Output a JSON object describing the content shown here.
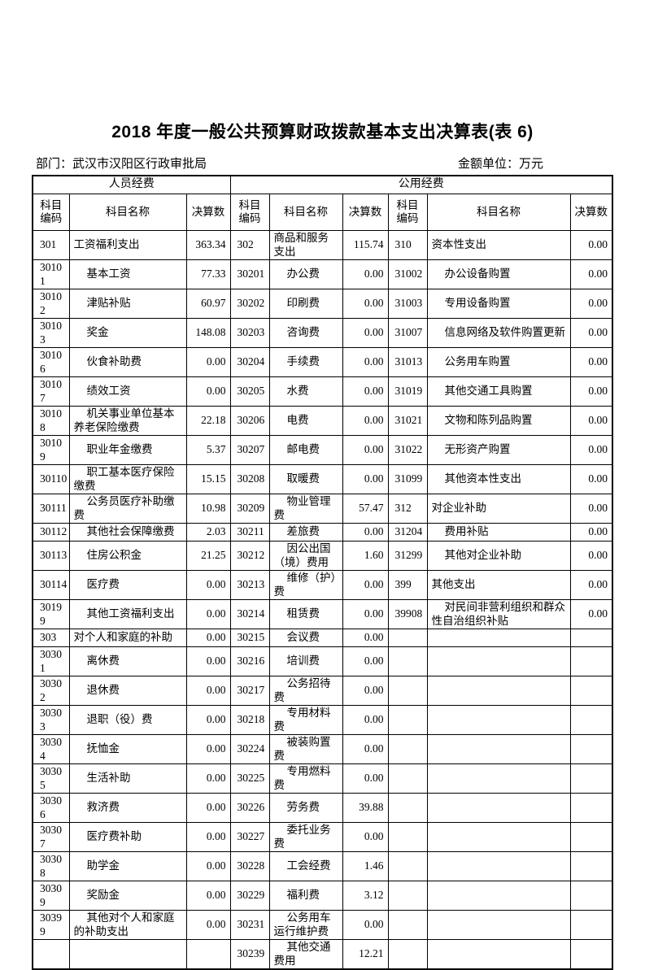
{
  "title": "2018 年度一般公共预算财政拨款基本支出决算表(表 6)",
  "meta": {
    "department_label": "部门：",
    "department_value": "武汉市汉阳区行政审批局",
    "unit_label": "金额单位：",
    "unit_value": "万元"
  },
  "table": {
    "group_headers": [
      "人员经费",
      "公用经费"
    ],
    "column_headers": [
      "科目编码",
      "科目名称",
      "决算数"
    ],
    "rows": [
      {
        "cells": [
          {
            "code": "301",
            "name": "工资福利支出",
            "value": "363.34",
            "parent": true
          },
          {
            "code": "302",
            "name": "商品和服务支出",
            "value": "115.74",
            "parent": true
          },
          {
            "code": "310",
            "name": "资本性支出",
            "value": "0.00",
            "parent": true
          }
        ]
      },
      {
        "cells": [
          {
            "code": "30101",
            "name": "基本工资",
            "value": "77.33"
          },
          {
            "code": "30201",
            "name": "办公费",
            "value": "0.00"
          },
          {
            "code": "31002",
            "name": "办公设备购置",
            "value": "0.00"
          }
        ]
      },
      {
        "cells": [
          {
            "code": "30102",
            "name": "津贴补贴",
            "value": "60.97"
          },
          {
            "code": "30202",
            "name": "印刷费",
            "value": "0.00"
          },
          {
            "code": "31003",
            "name": "专用设备购置",
            "value": "0.00"
          }
        ]
      },
      {
        "cells": [
          {
            "code": "30103",
            "name": "奖金",
            "value": "148.08"
          },
          {
            "code": "30203",
            "name": "咨询费",
            "value": "0.00"
          },
          {
            "code": "31007",
            "name": "信息网络及软件购置更新",
            "value": "0.00"
          }
        ]
      },
      {
        "cells": [
          {
            "code": "30106",
            "name": "伙食补助费",
            "value": "0.00"
          },
          {
            "code": "30204",
            "name": "手续费",
            "value": "0.00"
          },
          {
            "code": "31013",
            "name": "公务用车购置",
            "value": "0.00"
          }
        ]
      },
      {
        "cells": [
          {
            "code": "30107",
            "name": "绩效工资",
            "value": "0.00"
          },
          {
            "code": "30205",
            "name": "水费",
            "value": "0.00"
          },
          {
            "code": "31019",
            "name": "其他交通工具购置",
            "value": "0.00"
          }
        ]
      },
      {
        "cells": [
          {
            "code": "30108",
            "name": "机关事业单位基本养老保险缴费",
            "value": "22.18"
          },
          {
            "code": "30206",
            "name": "电费",
            "value": "0.00"
          },
          {
            "code": "31021",
            "name": "文物和陈列品购置",
            "value": "0.00"
          }
        ]
      },
      {
        "cells": [
          {
            "code": "30109",
            "name": "职业年金缴费",
            "value": "5.37"
          },
          {
            "code": "30207",
            "name": "邮电费",
            "value": "0.00"
          },
          {
            "code": "31022",
            "name": "无形资产购置",
            "value": "0.00"
          }
        ]
      },
      {
        "cells": [
          {
            "code": "30110",
            "name": "职工基本医疗保险缴费",
            "value": "15.15"
          },
          {
            "code": "30208",
            "name": "取暖费",
            "value": "0.00"
          },
          {
            "code": "31099",
            "name": "其他资本性支出",
            "value": "0.00"
          }
        ]
      },
      {
        "cells": [
          {
            "code": "30111",
            "name": "公务员医疗补助缴费",
            "value": "10.98"
          },
          {
            "code": "30209",
            "name": "物业管理费",
            "value": "57.47"
          },
          {
            "code": "312",
            "name": "对企业补助",
            "value": "0.00",
            "parent": true
          }
        ]
      },
      {
        "cells": [
          {
            "code": "30112",
            "name": "其他社会保障缴费",
            "value": "2.03"
          },
          {
            "code": "30211",
            "name": "差旅费",
            "value": "0.00"
          },
          {
            "code": "31204",
            "name": "费用补贴",
            "value": "0.00"
          }
        ]
      },
      {
        "cells": [
          {
            "code": "30113",
            "name": "住房公积金",
            "value": "21.25"
          },
          {
            "code": "30212",
            "name": "因公出国（境）费用",
            "value": "1.60"
          },
          {
            "code": "31299",
            "name": "其他对企业补助",
            "value": "0.00"
          }
        ]
      },
      {
        "cells": [
          {
            "code": "30114",
            "name": "医疗费",
            "value": "0.00"
          },
          {
            "code": "30213",
            "name": "维修（护）费",
            "value": "0.00"
          },
          {
            "code": "399",
            "name": "其他支出",
            "value": "0.00",
            "parent": true
          }
        ]
      },
      {
        "cells": [
          {
            "code": "30199",
            "name": "其他工资福利支出",
            "value": "0.00"
          },
          {
            "code": "30214",
            "name": "租赁费",
            "value": "0.00"
          },
          {
            "code": "39908",
            "name": "对民间非营利组织和群众性自治组织补贴",
            "value": "0.00"
          }
        ]
      },
      {
        "cells": [
          {
            "code": "303",
            "name": "对个人和家庭的补助",
            "value": "0.00",
            "parent": true
          },
          {
            "code": "30215",
            "name": "会议费",
            "value": "0.00"
          },
          {
            "code": "",
            "name": "",
            "value": ""
          }
        ]
      },
      {
        "cells": [
          {
            "code": "30301",
            "name": "离休费",
            "value": "0.00"
          },
          {
            "code": "30216",
            "name": "培训费",
            "value": "0.00"
          },
          {
            "code": "",
            "name": "",
            "value": ""
          }
        ]
      },
      {
        "cells": [
          {
            "code": "30302",
            "name": "退休费",
            "value": "0.00"
          },
          {
            "code": "30217",
            "name": "公务招待费",
            "value": "0.00"
          },
          {
            "code": "",
            "name": "",
            "value": ""
          }
        ]
      },
      {
        "cells": [
          {
            "code": "30303",
            "name": "退职（役）费",
            "value": "0.00"
          },
          {
            "code": "30218",
            "name": "专用材料费",
            "value": "0.00"
          },
          {
            "code": "",
            "name": "",
            "value": ""
          }
        ]
      },
      {
        "cells": [
          {
            "code": "30304",
            "name": "抚恤金",
            "value": "0.00"
          },
          {
            "code": "30224",
            "name": "被装购置费",
            "value": "0.00"
          },
          {
            "code": "",
            "name": "",
            "value": ""
          }
        ]
      },
      {
        "cells": [
          {
            "code": "30305",
            "name": "生活补助",
            "value": "0.00"
          },
          {
            "code": "30225",
            "name": "专用燃料费",
            "value": "0.00"
          },
          {
            "code": "",
            "name": "",
            "value": ""
          }
        ]
      },
      {
        "cells": [
          {
            "code": "30306",
            "name": "救济费",
            "value": "0.00"
          },
          {
            "code": "30226",
            "name": "劳务费",
            "value": "39.88"
          },
          {
            "code": "",
            "name": "",
            "value": ""
          }
        ]
      },
      {
        "cells": [
          {
            "code": "30307",
            "name": "医疗费补助",
            "value": "0.00"
          },
          {
            "code": "30227",
            "name": "委托业务费",
            "value": "0.00"
          },
          {
            "code": "",
            "name": "",
            "value": ""
          }
        ]
      },
      {
        "cells": [
          {
            "code": "30308",
            "name": "助学金",
            "value": "0.00"
          },
          {
            "code": "30228",
            "name": "工会经费",
            "value": "1.46"
          },
          {
            "code": "",
            "name": "",
            "value": ""
          }
        ]
      },
      {
        "cells": [
          {
            "code": "30309",
            "name": "奖励金",
            "value": "0.00"
          },
          {
            "code": "30229",
            "name": "福利费",
            "value": "3.12"
          },
          {
            "code": "",
            "name": "",
            "value": ""
          }
        ]
      },
      {
        "cells": [
          {
            "code": "30399",
            "name": "其他对个人和家庭的补助支出",
            "value": "0.00"
          },
          {
            "code": "30231",
            "name": "公务用车运行维护费",
            "value": "0.00"
          },
          {
            "code": "",
            "name": "",
            "value": ""
          }
        ]
      },
      {
        "cells": [
          {
            "code": "",
            "name": "",
            "value": ""
          },
          {
            "code": "30239",
            "name": "其他交通费用",
            "value": "12.21"
          },
          {
            "code": "",
            "name": "",
            "value": ""
          }
        ]
      }
    ]
  }
}
